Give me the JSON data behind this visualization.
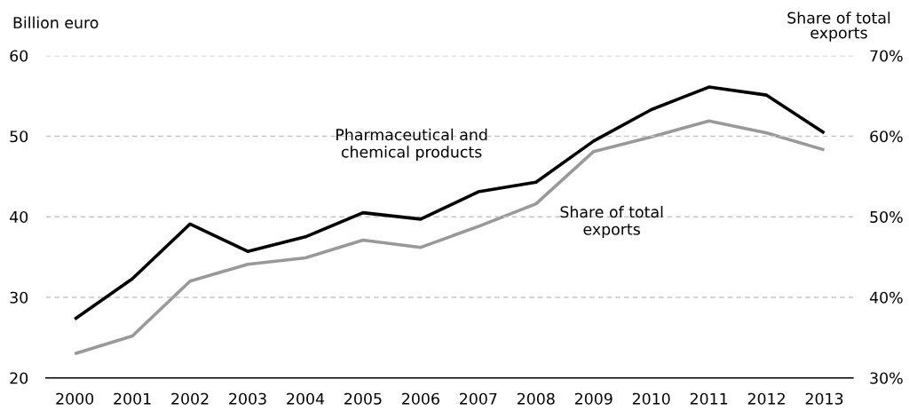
{
  "chart_data": {
    "type": "line",
    "ylabel": "Billion euro",
    "y2label": "Share of total\nexports",
    "categories": [
      "2000",
      "2001",
      "2002",
      "2003",
      "2004",
      "2005",
      "2006",
      "2007",
      "2008",
      "2009",
      "2010",
      "2011",
      "2012",
      "2013"
    ],
    "series": [
      {
        "name": "Pharmaceutical and\nchemical products",
        "color": "#000000",
        "values": [
          27.3,
          32.3,
          39.1,
          35.7,
          37.5,
          40.5,
          39.7,
          43.1,
          44.3,
          49.4,
          53.3,
          56.1,
          55.1,
          50.4
        ]
      },
      {
        "name": "Share of total\nexports",
        "color": "#999999",
        "axis": "y2",
        "values": [
          33.0,
          35.2,
          42.0,
          44.1,
          44.9,
          47.1,
          46.2,
          48.8,
          51.6,
          58.1,
          59.9,
          61.9,
          60.4,
          58.3
        ]
      }
    ],
    "ylim": [
      20,
      60
    ],
    "yticks": [
      20,
      30,
      40,
      50,
      60
    ],
    "y2lim": [
      30,
      70
    ],
    "y2ticks": [
      {
        "value": 30,
        "label": "30%"
      },
      {
        "value": 40,
        "label": "40%"
      },
      {
        "value": 50,
        "label": "50%"
      },
      {
        "value": 60,
        "label": "60%"
      },
      {
        "value": 70,
        "label": "70%"
      }
    ],
    "grid": "y",
    "line_style": "solid"
  }
}
